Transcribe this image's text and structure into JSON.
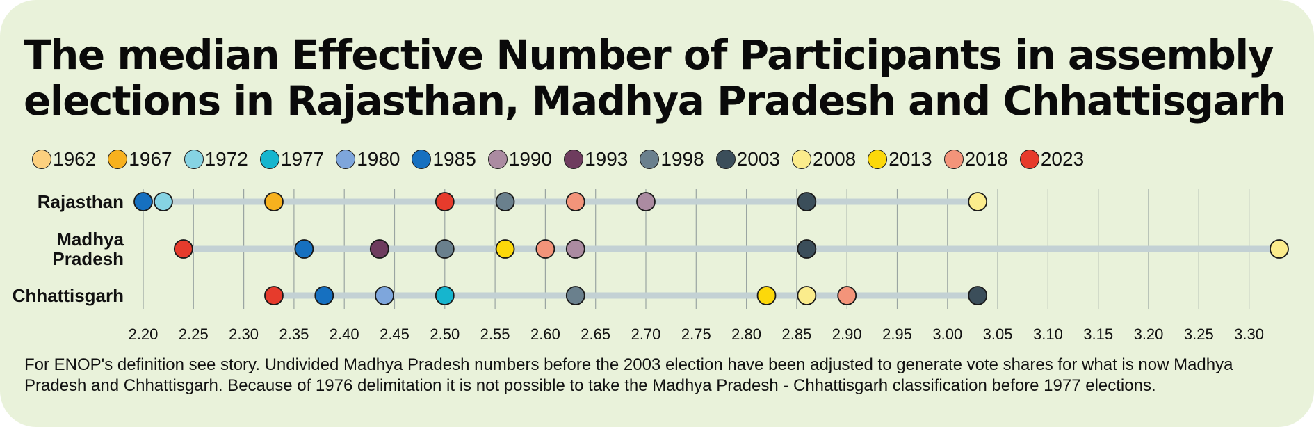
{
  "title": {
    "line1": "The median Effective Number of Participants in assembly",
    "line2": "elections in Rajasthan, Madhya Pradesh and Chhattisgarh"
  },
  "footnote": "For ENOP's definition see story. Undivided Madhya Pradesh numbers before the 2003 election have been adjusted to generate vote shares for what is now Madhya Pradesh and Chhattisgarh. Because of 1976 delimitation it is not possible to take the Madhya Pradesh - Chhattisgarh classification before 1977 elections.",
  "colors": {
    "background": "#e9f2da",
    "range_line": "#c3d1d4",
    "gridline": "#9aa5a2"
  },
  "chart_data": {
    "type": "scatter",
    "x_ticks": [
      "2.20",
      "2.25",
      "2.30",
      "2.35",
      "2.40",
      "2.45",
      "2.50",
      "2.55",
      "2.60",
      "2.65",
      "2.70",
      "2.75",
      "2.80",
      "2.85",
      "2.90",
      "2.95",
      "3.00",
      "3.05",
      "3.10",
      "3.15",
      "3.20",
      "3.25",
      "3.30"
    ],
    "xlim": [
      2.2,
      3.3
    ],
    "grid": true,
    "legend_position": "top",
    "years": [
      {
        "year": "1962",
        "color": "#fcd07f"
      },
      {
        "year": "1967",
        "color": "#f7b11e"
      },
      {
        "year": "1972",
        "color": "#86d3e3"
      },
      {
        "year": "1977",
        "color": "#16b5ce"
      },
      {
        "year": "1980",
        "color": "#7ea6dc"
      },
      {
        "year": "1985",
        "color": "#1670c0"
      },
      {
        "year": "1990",
        "color": "#ab8ba1"
      },
      {
        "year": "1993",
        "color": "#6e3c5e"
      },
      {
        "year": "1998",
        "color": "#6a808d"
      },
      {
        "year": "2003",
        "color": "#3b4e5a"
      },
      {
        "year": "2008",
        "color": "#fbec8c"
      },
      {
        "year": "2013",
        "color": "#fcd80a"
      },
      {
        "year": "2018",
        "color": "#f3947a"
      },
      {
        "year": "2023",
        "color": "#e63b2c"
      }
    ],
    "rows": [
      {
        "label_lines": [
          "Rajasthan"
        ],
        "points": [
          {
            "year": "1985",
            "value": 2.2
          },
          {
            "year": "1972",
            "value": 2.22
          },
          {
            "year": "1967",
            "value": 2.33
          },
          {
            "year": "2023",
            "value": 2.5
          },
          {
            "year": "1998",
            "value": 2.56
          },
          {
            "year": "2018",
            "value": 2.63
          },
          {
            "year": "1990",
            "value": 2.7
          },
          {
            "year": "2003",
            "value": 2.86
          },
          {
            "year": "2008",
            "value": 3.03
          }
        ]
      },
      {
        "label_lines": [
          "Madhya",
          "Pradesh"
        ],
        "points": [
          {
            "year": "2023",
            "value": 2.24
          },
          {
            "year": "1985",
            "value": 2.36
          },
          {
            "year": "1993",
            "value": 2.435
          },
          {
            "year": "1998",
            "value": 2.5
          },
          {
            "year": "2013",
            "value": 2.56
          },
          {
            "year": "2018",
            "value": 2.6
          },
          {
            "year": "1990",
            "value": 2.63
          },
          {
            "year": "2003",
            "value": 2.86
          },
          {
            "year": "2008",
            "value": 3.33
          }
        ]
      },
      {
        "label_lines": [
          "Chhattisgarh"
        ],
        "points": [
          {
            "year": "2023",
            "value": 2.33
          },
          {
            "year": "1985",
            "value": 2.38
          },
          {
            "year": "1980",
            "value": 2.44
          },
          {
            "year": "1977",
            "value": 2.5
          },
          {
            "year": "1998",
            "value": 2.63
          },
          {
            "year": "2013",
            "value": 2.82
          },
          {
            "year": "2008",
            "value": 2.86
          },
          {
            "year": "2018",
            "value": 2.9
          },
          {
            "year": "2003",
            "value": 3.03
          }
        ]
      }
    ]
  }
}
